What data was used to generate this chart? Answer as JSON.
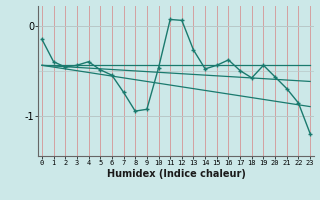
{
  "xlabel": "Humidex (Indice chaleur)",
  "bg_color": "#cce8e8",
  "line_color": "#1a7a6e",
  "grid_color_v": "#d4a0a0",
  "grid_color_h": "#b8c8c8",
  "x_ticks": [
    0,
    1,
    2,
    3,
    4,
    5,
    6,
    7,
    8,
    9,
    10,
    11,
    12,
    13,
    14,
    15,
    16,
    17,
    18,
    19,
    20,
    21,
    22,
    23
  ],
  "y_ticks": [
    0,
    -1
  ],
  "xlim": [
    -0.3,
    23.3
  ],
  "ylim": [
    -1.45,
    0.22
  ],
  "main_x": [
    0,
    1,
    2,
    3,
    4,
    5,
    6,
    7,
    8,
    9,
    10,
    11,
    12,
    13,
    14,
    15,
    16,
    17,
    18,
    19,
    20,
    21,
    22,
    23
  ],
  "main_y": [
    -0.15,
    -0.4,
    -0.46,
    -0.44,
    -0.4,
    -0.49,
    -0.55,
    -0.74,
    -0.95,
    -0.93,
    -0.47,
    0.07,
    0.06,
    -0.27,
    -0.48,
    -0.44,
    -0.38,
    -0.5,
    -0.58,
    -0.44,
    -0.57,
    -0.7,
    -0.86,
    -1.2
  ],
  "trend1_x": [
    0,
    23
  ],
  "trend1_y": [
    -0.44,
    -0.44
  ],
  "trend2_x": [
    0,
    23
  ],
  "trend2_y": [
    -0.44,
    -0.62
  ],
  "trend3_x": [
    0,
    23
  ],
  "trend3_y": [
    -0.44,
    -0.9
  ]
}
